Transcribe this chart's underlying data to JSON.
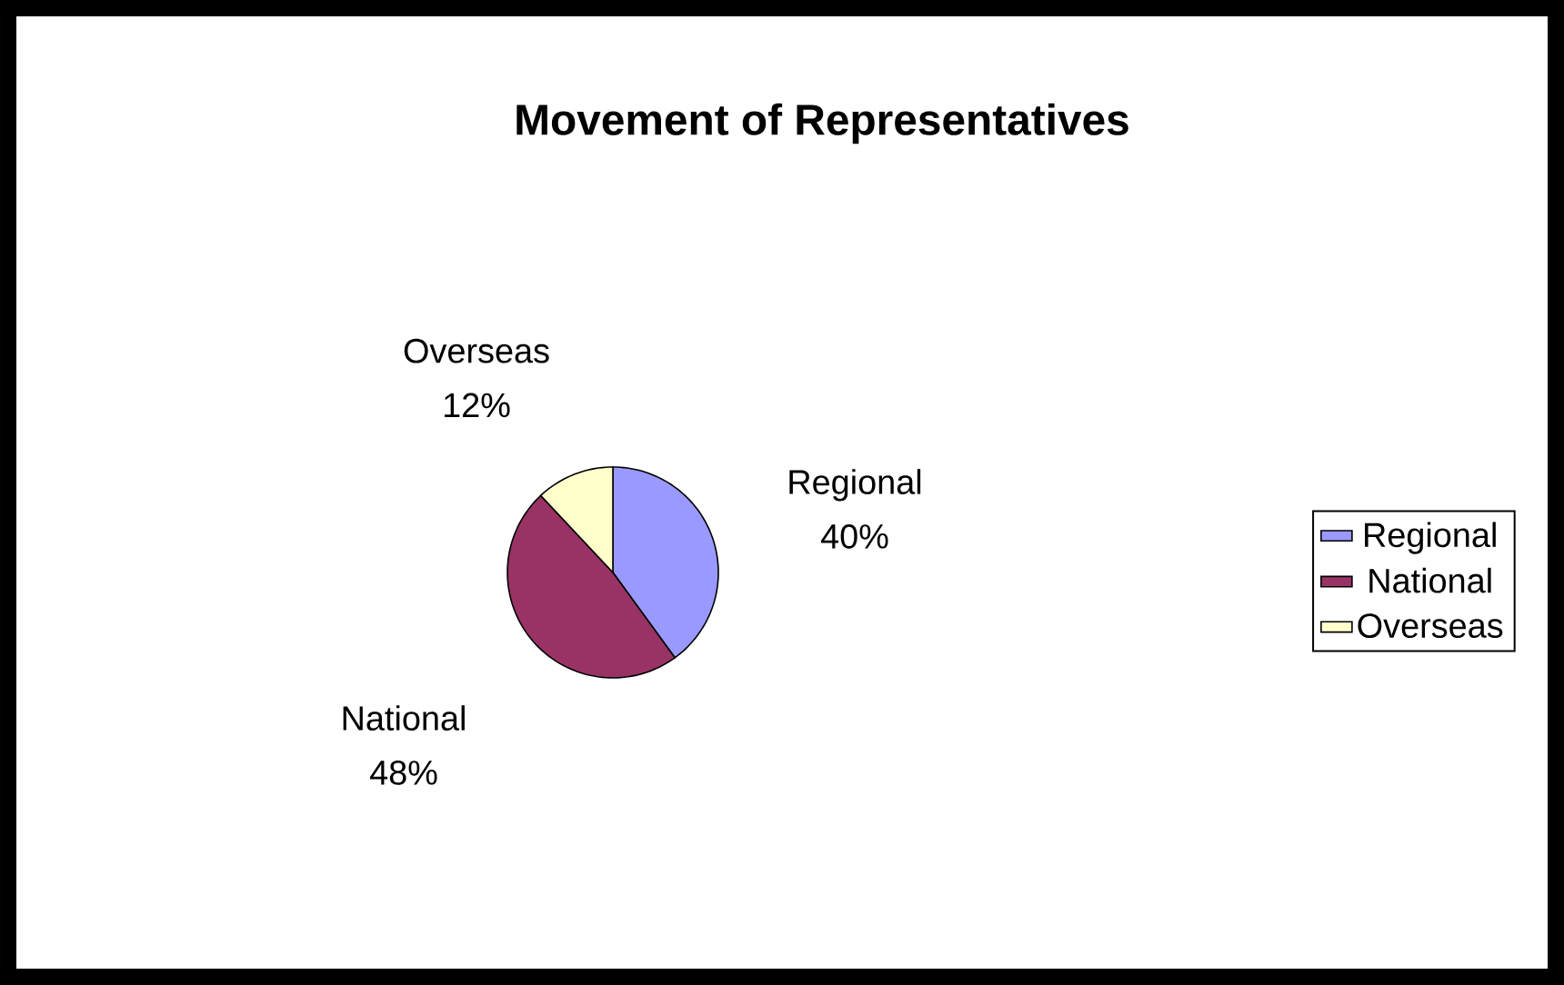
{
  "chart_data": {
    "type": "pie",
    "title": "Movement of Representatives",
    "categories": [
      "Regional",
      "National",
      "Overseas"
    ],
    "values": [
      40,
      48,
      12
    ],
    "colors": [
      "#9999ff",
      "#993366",
      "#ffffcc"
    ],
    "value_labels": [
      "40%",
      "48%",
      "12%"
    ],
    "legend": "right"
  }
}
